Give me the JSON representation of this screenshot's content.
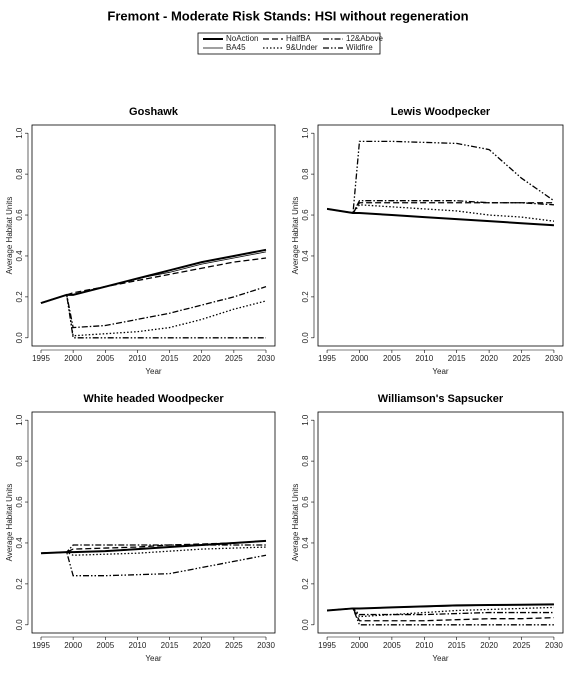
{
  "title": "Fremont  - Moderate Risk Stands: HSI without regeneration",
  "chart_data": [
    {
      "type": "line",
      "title": "Goshawk",
      "xlabel": "Year",
      "ylabel": "Average Habitat Units",
      "x": [
        1995,
        1999,
        2000,
        2005,
        2010,
        2015,
        2020,
        2025,
        2030
      ],
      "xlim": [
        1993.6,
        2031.4
      ],
      "ylim": [
        -0.04,
        1.04
      ],
      "xticks": [
        1995,
        2000,
        2005,
        2010,
        2015,
        2020,
        2025,
        2030
      ],
      "yticks": [
        {
          "value": 0,
          "label": "0.0"
        },
        0.2,
        0.4,
        0.6,
        0.8,
        {
          "value": 1,
          "label": "1.0"
        }
      ],
      "series": [
        {
          "name": "NoAction",
          "color": "#000000",
          "width": 2,
          "dash": "none",
          "values": [
            0.17,
            0.21,
            0.21,
            0.25,
            0.29,
            0.33,
            0.37,
            0.4,
            0.43
          ]
        },
        {
          "name": "BA45",
          "color": "#000000",
          "width": 0.8,
          "dash": "none",
          "values": [
            0.17,
            0.21,
            0.21,
            0.25,
            0.29,
            0.32,
            0.36,
            0.39,
            0.42
          ]
        },
        {
          "name": "HalfBA",
          "color": "#000000",
          "width": 1.3,
          "dash": "6,3",
          "values": [
            0.17,
            0.21,
            0.22,
            0.25,
            0.28,
            0.31,
            0.34,
            0.37,
            0.39
          ]
        },
        {
          "name": "9&Under",
          "color": "#000000",
          "width": 1.3,
          "dash": "1.5,2",
          "values": [
            0.17,
            0.21,
            0.01,
            0.02,
            0.03,
            0.05,
            0.09,
            0.14,
            0.18
          ]
        },
        {
          "name": "12&Above",
          "color": "#000000",
          "width": 1.3,
          "dash": "6,2,1.5,2",
          "values": [
            0.17,
            0.21,
            0.05,
            0.06,
            0.09,
            0.12,
            0.16,
            0.2,
            0.25
          ]
        },
        {
          "name": "Wildfire",
          "color": "#000000",
          "width": 1.3,
          "dash": "6,2,1.5,2,1.5,2",
          "values": [
            0.17,
            0.21,
            0,
            0,
            0,
            0,
            0,
            0,
            0
          ]
        }
      ]
    },
    {
      "type": "line",
      "title": "Lewis Woodpecker",
      "xlabel": "Year",
      "ylabel": "Average Habitat Units",
      "x": [
        1995,
        1999,
        2000,
        2005,
        2010,
        2015,
        2020,
        2025,
        2030
      ],
      "xlim": [
        1993.6,
        2031.4
      ],
      "ylim": [
        -0.04,
        1.04
      ],
      "xticks": [
        1995,
        2000,
        2005,
        2010,
        2015,
        2020,
        2025,
        2030
      ],
      "yticks": [
        {
          "value": 0,
          "label": "0.0"
        },
        0.2,
        0.4,
        0.6,
        0.8,
        {
          "value": 1,
          "label": "1.0"
        }
      ],
      "series": [
        {
          "name": "NoAction",
          "color": "#000000",
          "width": 2,
          "dash": "none",
          "values": [
            0.63,
            0.61,
            0.61,
            0.6,
            0.59,
            0.58,
            0.57,
            0.56,
            0.55
          ]
        },
        {
          "name": "BA45",
          "color": "#000000",
          "width": 0.8,
          "dash": "none",
          "values": [
            0.63,
            0.61,
            0.61,
            0.6,
            0.59,
            0.58,
            0.57,
            0.56,
            0.55
          ]
        },
        {
          "name": "HalfBA",
          "color": "#000000",
          "width": 1.3,
          "dash": "6,3",
          "values": [
            0.63,
            0.61,
            0.66,
            0.66,
            0.66,
            0.66,
            0.66,
            0.66,
            0.66
          ]
        },
        {
          "name": "9&Under",
          "color": "#000000",
          "width": 1.3,
          "dash": "1.5,2",
          "values": [
            0.63,
            0.61,
            0.65,
            0.64,
            0.63,
            0.62,
            0.6,
            0.59,
            0.57
          ]
        },
        {
          "name": "12&Above",
          "color": "#000000",
          "width": 1.3,
          "dash": "6,2,1.5,2",
          "values": [
            0.63,
            0.61,
            0.67,
            0.67,
            0.67,
            0.67,
            0.66,
            0.66,
            0.65
          ]
        },
        {
          "name": "Wildfire",
          "color": "#000000",
          "width": 1.3,
          "dash": "6,2,1.5,2,1.5,2",
          "values": [
            0.63,
            0.61,
            0.96,
            0.96,
            0.955,
            0.95,
            0.92,
            0.78,
            0.67
          ]
        }
      ]
    },
    {
      "type": "line",
      "title": "White headed Woodpecker",
      "xlabel": "Year",
      "ylabel": "Average Habitat Units",
      "x": [
        1995,
        1999,
        2000,
        2005,
        2010,
        2015,
        2020,
        2025,
        2030
      ],
      "xlim": [
        1993.6,
        2031.4
      ],
      "ylim": [
        -0.04,
        1.04
      ],
      "xticks": [
        1995,
        2000,
        2005,
        2010,
        2015,
        2020,
        2025,
        2030
      ],
      "yticks": [
        {
          "value": 0,
          "label": "0.0"
        },
        0.2,
        0.4,
        0.6,
        0.8,
        {
          "value": 1,
          "label": "1.0"
        }
      ],
      "series": [
        {
          "name": "NoAction",
          "color": "#000000",
          "width": 2,
          "dash": "none",
          "values": [
            0.35,
            0.355,
            0.355,
            0.36,
            0.37,
            0.38,
            0.39,
            0.4,
            0.41
          ]
        },
        {
          "name": "BA45",
          "color": "#000000",
          "width": 0.8,
          "dash": "none",
          "values": [
            0.35,
            0.355,
            0.355,
            0.36,
            0.37,
            0.38,
            0.39,
            0.4,
            0.41
          ]
        },
        {
          "name": "HalfBA",
          "color": "#000000",
          "width": 1.3,
          "dash": "6,3",
          "values": [
            0.35,
            0.355,
            0.37,
            0.375,
            0.38,
            0.39,
            0.395,
            0.4,
            0.41
          ]
        },
        {
          "name": "9&Under",
          "color": "#000000",
          "width": 1.3,
          "dash": "1.5,2",
          "values": [
            0.35,
            0.355,
            0.34,
            0.345,
            0.35,
            0.36,
            0.37,
            0.375,
            0.38
          ]
        },
        {
          "name": "12&Above",
          "color": "#000000",
          "width": 1.3,
          "dash": "6,2,1.5,2",
          "values": [
            0.35,
            0.355,
            0.39,
            0.39,
            0.39,
            0.39,
            0.39,
            0.39,
            0.39
          ]
        },
        {
          "name": "Wildfire",
          "color": "#000000",
          "width": 1.3,
          "dash": "6,2,1.5,2,1.5,2",
          "values": [
            0.35,
            0.355,
            0.24,
            0.24,
            0.245,
            0.25,
            0.28,
            0.31,
            0.34
          ]
        }
      ]
    },
    {
      "type": "line",
      "title": "Williamson's Sapsucker",
      "xlabel": "Year",
      "ylabel": "Average Habitat Units",
      "x": [
        1995,
        1999,
        2000,
        2005,
        2010,
        2015,
        2020,
        2025,
        2030
      ],
      "xlim": [
        1993.6,
        2031.4
      ],
      "ylim": [
        -0.04,
        1.04
      ],
      "xticks": [
        1995,
        2000,
        2005,
        2010,
        2015,
        2020,
        2025,
        2030
      ],
      "yticks": [
        {
          "value": 0,
          "label": "0.0"
        },
        0.2,
        0.4,
        0.6,
        0.8,
        {
          "value": 1,
          "label": "1.0"
        }
      ],
      "series": [
        {
          "name": "NoAction",
          "color": "#000000",
          "width": 2,
          "dash": "none",
          "values": [
            0.07,
            0.08,
            0.08,
            0.085,
            0.09,
            0.095,
            0.097,
            0.098,
            0.1
          ]
        },
        {
          "name": "BA45",
          "color": "#000000",
          "width": 0.8,
          "dash": "none",
          "values": [
            0.07,
            0.08,
            0.08,
            0.084,
            0.088,
            0.092,
            0.095,
            0.097,
            0.099
          ]
        },
        {
          "name": "HalfBA",
          "color": "#000000",
          "width": 1.3,
          "dash": "6,3",
          "values": [
            0.07,
            0.08,
            0.02,
            0.02,
            0.02,
            0.025,
            0.03,
            0.03,
            0.035
          ]
        },
        {
          "name": "9&Under",
          "color": "#000000",
          "width": 1.3,
          "dash": "1.5,2",
          "values": [
            0.07,
            0.08,
            0.04,
            0.05,
            0.06,
            0.07,
            0.075,
            0.08,
            0.085
          ]
        },
        {
          "name": "12&Above",
          "color": "#000000",
          "width": 1.3,
          "dash": "6,2,1.5,2",
          "values": [
            0.07,
            0.08,
            0.05,
            0.05,
            0.05,
            0.055,
            0.06,
            0.06,
            0.06
          ]
        },
        {
          "name": "Wildfire",
          "color": "#000000",
          "width": 1.3,
          "dash": "6,2,1.5,2,1.5,2",
          "values": [
            0.07,
            0.08,
            0,
            0,
            0,
            0,
            0,
            0,
            0
          ]
        }
      ]
    }
  ]
}
